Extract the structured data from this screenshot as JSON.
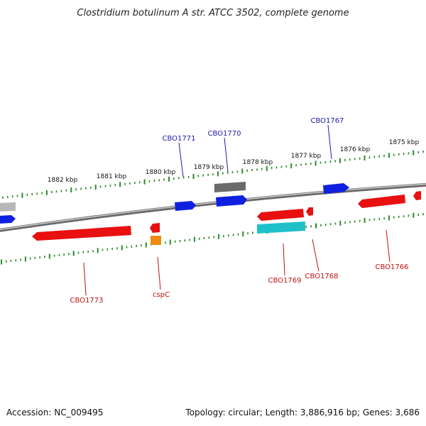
{
  "title": "Clostridium botulinum A str. ATCC 3502, complete genome",
  "footer": {
    "accession": "Accession: NC_009495",
    "summary": "Topology: circular; Length: 3,886,916 bp; Genes: 3,686"
  },
  "colors": {
    "forward_label": "#1a1ab0",
    "reverse_label": "#c01010",
    "tick": "#2a8a2a",
    "backbone": "#8a8a8a",
    "gene_red": "#e81010",
    "gene_blue": "#1020e0",
    "gene_gray": "#6a6a6a",
    "gene_cyan": "#20c0c8",
    "gene_orange": "#f08a10",
    "gene_lightgray": "#b8b8b8"
  },
  "scale": {
    "unit": "kbp",
    "labels": [
      "1882 kbp",
      "1881 kbp",
      "1880 kbp",
      "1879 kbp",
      "1878 kbp",
      "1877 kbp",
      "1876 kbp",
      "1875 kbp"
    ]
  },
  "gene_labels": {
    "forward": [
      "CBO1771",
      "CBO1770",
      "CBO1767"
    ],
    "reverse": [
      "CBO1773",
      "cspC",
      "CBO1769",
      "CBO1768",
      "CBO1766"
    ]
  }
}
